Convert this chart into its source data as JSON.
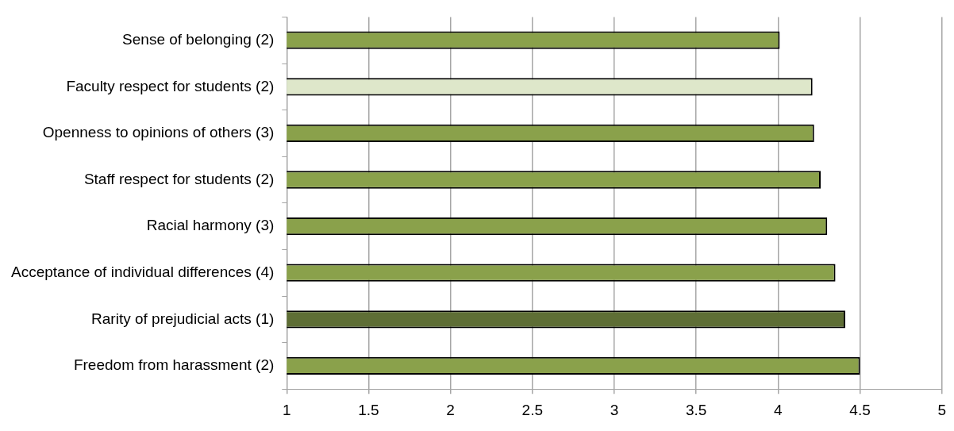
{
  "chart_data": {
    "type": "bar",
    "orientation": "horizontal",
    "categories": [
      "Sense of belonging (2)",
      "Faculty respect for students (2)",
      "Openness to opinions of others (3)",
      "Staff respect for students (2)",
      "Racial harmony (3)",
      "Acceptance of individual differences (4)",
      "Rarity of prejudicial acts (1)",
      "Freedom from harassment (2)"
    ],
    "values": [
      4.01,
      4.21,
      4.22,
      4.26,
      4.3,
      4.35,
      4.41,
      4.5
    ],
    "colors": [
      "#8aa14b",
      "#dee7ca",
      "#8aa14b",
      "#8aa14b",
      "#8aa14b",
      "#8aa14b",
      "#5e6e35",
      "#8aa14b"
    ],
    "xlim": [
      1,
      5
    ],
    "xticks": [
      1,
      1.5,
      2,
      2.5,
      3,
      3.5,
      4,
      4.5,
      5
    ],
    "grid": "x",
    "legend": false
  }
}
